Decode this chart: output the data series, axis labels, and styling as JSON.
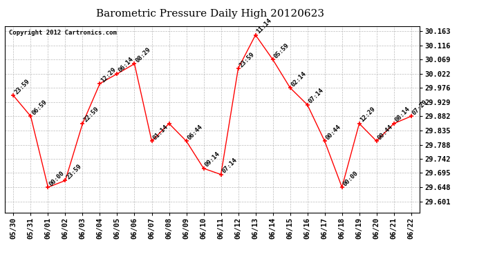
{
  "title": "Barometric Pressure Daily High 20120623",
  "copyright": "Copyright 2012 Cartronics.com",
  "x_labels": [
    "05/30",
    "05/31",
    "06/01",
    "06/02",
    "06/03",
    "06/04",
    "06/05",
    "06/06",
    "06/07",
    "06/08",
    "06/09",
    "06/10",
    "06/11",
    "06/12",
    "06/13",
    "06/14",
    "06/15",
    "06/16",
    "06/17",
    "06/18",
    "06/19",
    "06/20",
    "06/21",
    "06/22"
  ],
  "y_values": [
    29.95,
    29.882,
    29.648,
    29.67,
    29.858,
    29.99,
    30.022,
    30.055,
    29.8,
    29.858,
    29.8,
    29.71,
    29.69,
    30.04,
    30.15,
    30.069,
    29.976,
    29.92,
    29.8,
    29.648,
    29.858,
    29.8,
    29.858,
    29.882
  ],
  "point_labels": [
    "23:59",
    "06:59",
    "00:00",
    "23:59",
    "22:59",
    "12:29",
    "06:14",
    "08:29",
    "01:14",
    "",
    "06:44",
    "09:14",
    "07:14",
    "23:59",
    "11:14",
    "05:59",
    "02:14",
    "07:14",
    "00:44",
    "00:00",
    "12:29",
    "00:44",
    "08:14",
    "07:29"
  ],
  "y_ticks": [
    29.601,
    29.648,
    29.695,
    29.742,
    29.788,
    29.835,
    29.882,
    29.929,
    29.976,
    30.022,
    30.069,
    30.116,
    30.163
  ],
  "ylim": [
    29.565,
    30.18
  ],
  "line_color": "red",
  "bg_color": "white",
  "grid_color": "#bbbbbb",
  "title_fontsize": 11,
  "tick_fontsize": 7.5,
  "label_fontsize": 6.5,
  "copyright_fontsize": 6.5
}
